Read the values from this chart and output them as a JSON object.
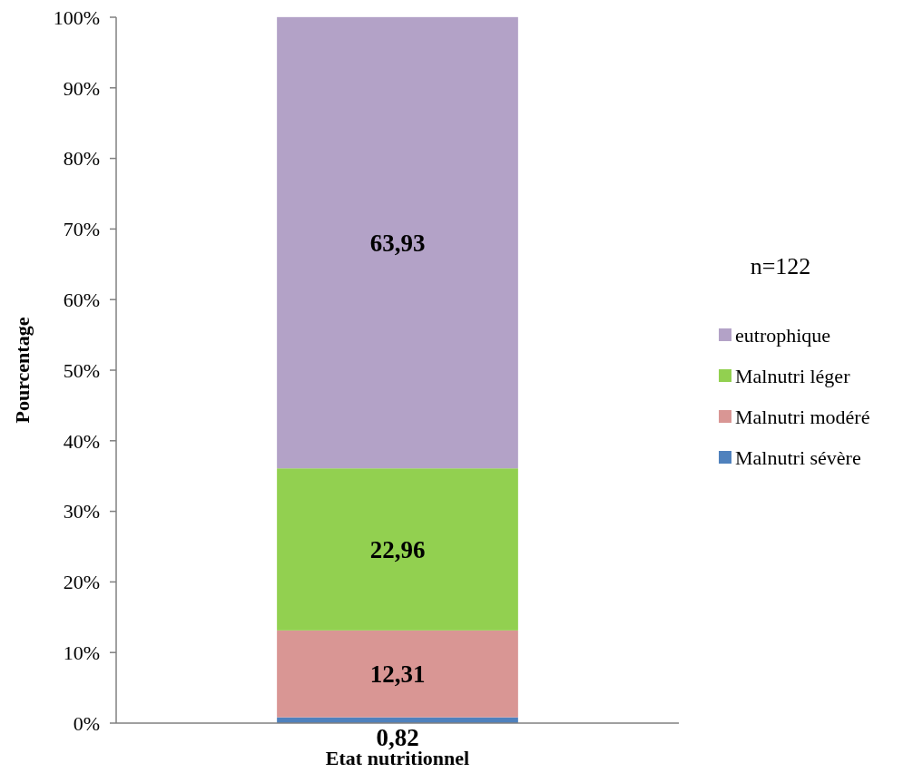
{
  "chart_data": {
    "type": "bar",
    "stacked": true,
    "categories": [
      null
    ],
    "xlabel": "Etat nutritionnel",
    "ylabel": "Pourcentage",
    "ylim": [
      0,
      100
    ],
    "yticks": [
      {
        "value": 0,
        "label": "0%"
      },
      {
        "value": 10,
        "label": "10%"
      },
      {
        "value": 20,
        "label": "20%"
      },
      {
        "value": 30,
        "label": "30%"
      },
      {
        "value": 40,
        "label": "40%"
      },
      {
        "value": 50,
        "label": "50%"
      },
      {
        "value": 60,
        "label": "60%"
      },
      {
        "value": 70,
        "label": "70%"
      },
      {
        "value": 80,
        "label": "80%"
      },
      {
        "value": 90,
        "label": "90%"
      },
      {
        "value": 100,
        "label": "100%"
      }
    ],
    "series": [
      {
        "name": "Malnutri sévère",
        "color": "#4f81bd",
        "values": [
          0.82
        ],
        "value_labels": [
          "0,82"
        ]
      },
      {
        "name": "Malnutri modéré",
        "color": "#d99694",
        "values": [
          12.31
        ],
        "value_labels": [
          "12,31"
        ]
      },
      {
        "name": "Malnutri léger",
        "color": "#92d050",
        "values": [
          22.96
        ],
        "value_labels": [
          "22,96"
        ]
      },
      {
        "name": "eutrophique",
        "color": "#b3a2c7",
        "values": [
          63.93
        ],
        "value_labels": [
          "63,93"
        ]
      }
    ],
    "legend": "right",
    "grid": false,
    "annotations": [
      "n=122"
    ]
  }
}
